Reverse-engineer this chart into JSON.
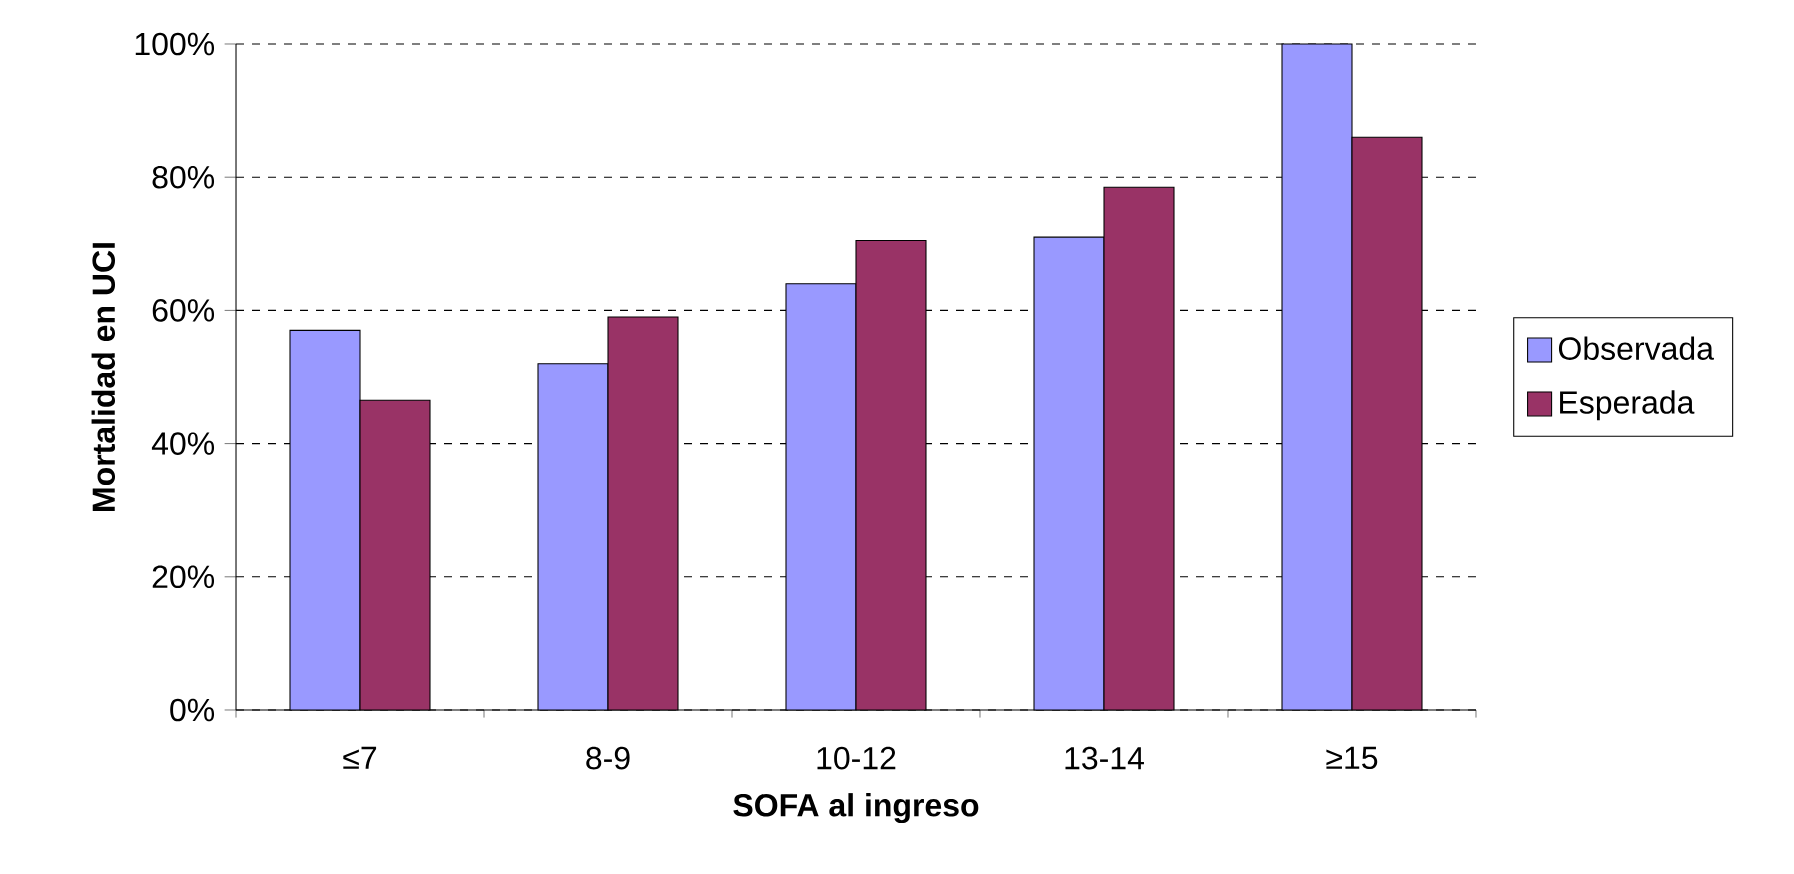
{
  "chart_data": {
    "type": "bar",
    "xlabel": "SOFA al ingreso",
    "ylabel": "Mortalidad en UCI",
    "categories": [
      "≤7",
      "8-9",
      "10-12",
      "13-14",
      "≥15"
    ],
    "series": [
      {
        "name": "Observada",
        "color": "#9999ff",
        "values": [
          57,
          52,
          64,
          71,
          100
        ]
      },
      {
        "name": "Esperada",
        "color": "#993366",
        "values": [
          46.5,
          59,
          70.5,
          78.5,
          86
        ]
      }
    ],
    "ylim": [
      0,
      100
    ],
    "yticks": [
      {
        "value": 0,
        "label": "0%"
      },
      {
        "value": 20,
        "label": "20%"
      },
      {
        "value": 40,
        "label": "40%"
      },
      {
        "value": 60,
        "label": "60%"
      },
      {
        "value": 80,
        "label": "80%"
      },
      {
        "value": 100,
        "label": "100%"
      }
    ],
    "grid": "y",
    "legend": "right"
  }
}
